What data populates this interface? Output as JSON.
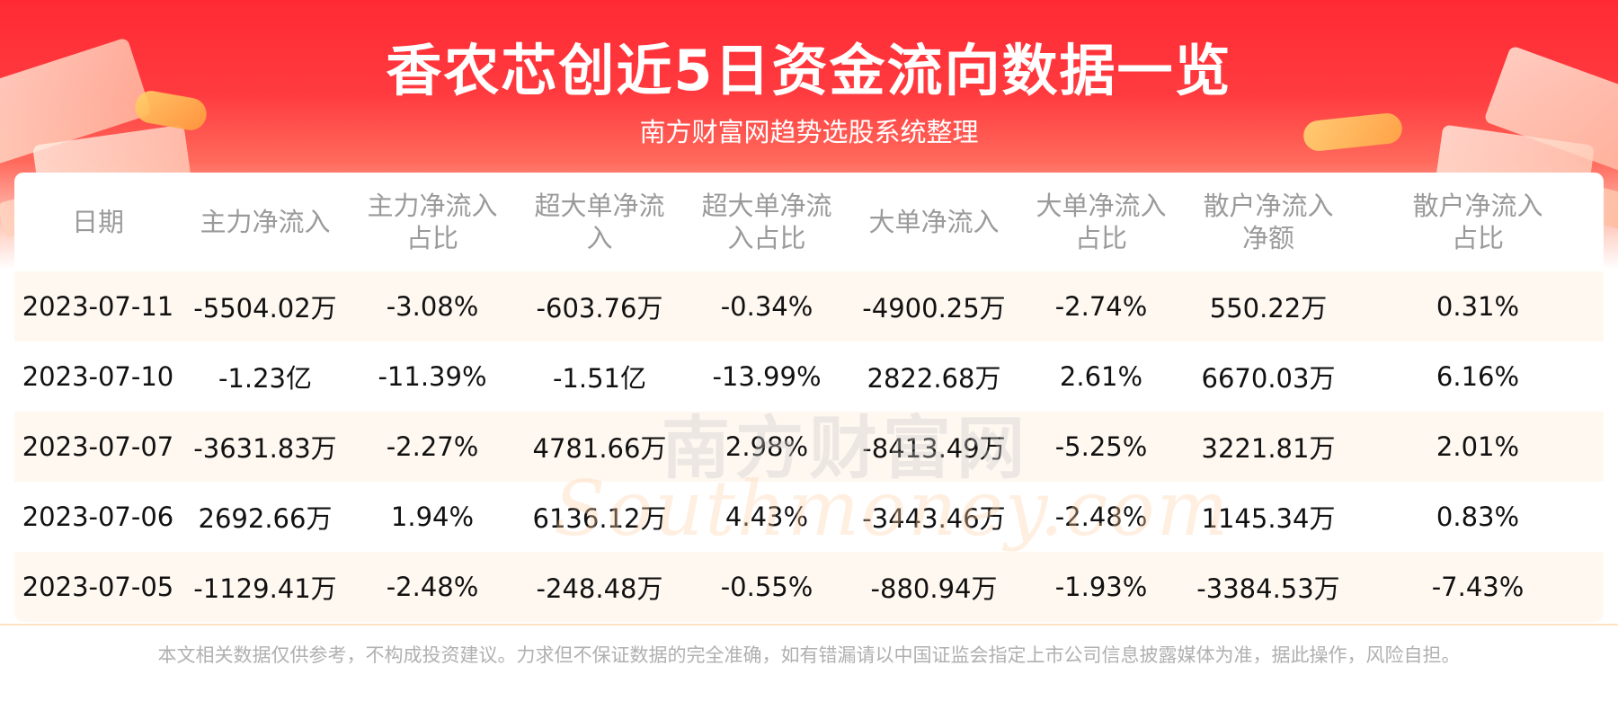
{
  "header": {
    "title": "香农芯创近5日资金流向数据一览",
    "subtitle": "南方财富网趋势选股系统整理"
  },
  "watermark": {
    "cn": "南方财富网",
    "en": "Southmoney.com"
  },
  "table": {
    "columns": [
      [
        "日期"
      ],
      [
        "主力净流入"
      ],
      [
        "主力净流入",
        "占比"
      ],
      [
        "超大单净流",
        "入"
      ],
      [
        "超大单净流",
        "入占比"
      ],
      [
        "大单净流入"
      ],
      [
        "大单净流入",
        "占比"
      ],
      [
        "散户净流入",
        "净额"
      ],
      [
        "散户净流入",
        "占比"
      ]
    ],
    "rows": [
      [
        "2023-07-11",
        "-5504.02万",
        "-3.08%",
        "-603.76万",
        "-0.34%",
        "-4900.25万",
        "-2.74%",
        "550.22万",
        "0.31%"
      ],
      [
        "2023-07-10",
        "-1.23亿",
        "-11.39%",
        "-1.51亿",
        "-13.99%",
        "2822.68万",
        "2.61%",
        "6670.03万",
        "6.16%"
      ],
      [
        "2023-07-07",
        "-3631.83万",
        "-2.27%",
        "4781.66万",
        "2.98%",
        "-8413.49万",
        "-5.25%",
        "3221.81万",
        "2.01%"
      ],
      [
        "2023-07-06",
        "2692.66万",
        "1.94%",
        "6136.12万",
        "4.43%",
        "-3443.46万",
        "-2.48%",
        "1145.34万",
        "0.83%"
      ],
      [
        "2023-07-05",
        "-1129.41万",
        "-2.48%",
        "-248.48万",
        "-0.55%",
        "-880.94万",
        "-1.93%",
        "-3384.53万",
        "-7.43%"
      ]
    ]
  },
  "footer": {
    "disclaimer": "本文相关数据仅供参考，不构成投资建议。力求但不保证数据的完全准确，如有错漏请以中国证监会指定上市公司信息披露媒体为准，据此操作，风险自担。"
  },
  "colors": {
    "header_red": "#ff2a34",
    "odd_row": "#fff8f1",
    "header_text": "#9a9a9a",
    "cell_text": "#111111"
  }
}
